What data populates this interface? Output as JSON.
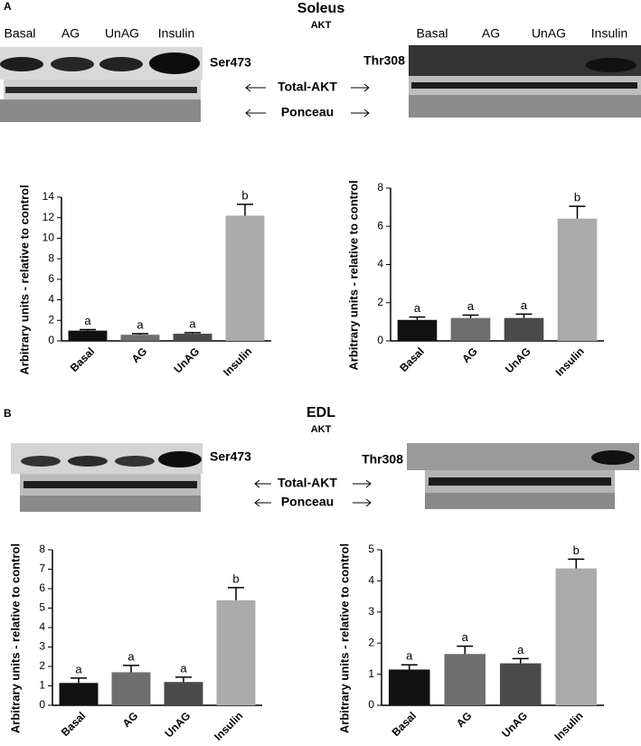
{
  "panels": [
    {
      "letter": "A",
      "title": "Soleus",
      "protein": "AKT",
      "left_lanes": [
        "Basal",
        "AG",
        "UnAG",
        "Insulin"
      ],
      "right_lanes": [
        "Basal",
        "AG",
        "UnAG",
        "Insulin"
      ],
      "left_site": "Ser473",
      "right_site": "Thr308",
      "total_label": "Total-AKT",
      "stain_label": "Ponceau"
    },
    {
      "letter": "B",
      "title": "EDL",
      "protein": "AKT",
      "left_site": "Ser473",
      "right_site": "Thr308",
      "total_label": "Total-AKT",
      "stain_label": "Ponceau"
    }
  ],
  "chart_data": [
    {
      "type": "bar",
      "y_label": "Arbitrary units - relative to control",
      "categories": [
        "Basal",
        "AG",
        "UnAG",
        "Insulin"
      ],
      "values": [
        1.0,
        0.6,
        0.7,
        12.2
      ],
      "errors": [
        0.1,
        0.1,
        0.1,
        1.1
      ],
      "annotations": [
        "a",
        "a",
        "a",
        "b"
      ],
      "colors": [
        "#111111",
        "#6e6e6e",
        "#4a4a4a",
        "#ababab"
      ],
      "ylim": [
        0,
        14
      ],
      "yticks": [
        0,
        2,
        4,
        6,
        8,
        10,
        12,
        14
      ]
    },
    {
      "type": "bar",
      "y_label": "Arbitrary units - relative to control",
      "categories": [
        "Basal",
        "AG",
        "UnAG",
        "Insulin"
      ],
      "values": [
        1.1,
        1.2,
        1.2,
        6.4
      ],
      "errors": [
        0.15,
        0.15,
        0.2,
        0.65
      ],
      "annotations": [
        "a",
        "a",
        "a",
        "b"
      ],
      "colors": [
        "#111111",
        "#6e6e6e",
        "#4a4a4a",
        "#ababab"
      ],
      "ylim": [
        0,
        8
      ],
      "yticks": [
        0,
        2,
        4,
        6,
        8
      ]
    },
    {
      "type": "bar",
      "y_label": "Arbitrary units - relative to control",
      "categories": [
        "Basal",
        "AG",
        "UnAG",
        "Insulin"
      ],
      "values": [
        1.15,
        1.7,
        1.2,
        5.4
      ],
      "errors": [
        0.25,
        0.35,
        0.25,
        0.65
      ],
      "annotations": [
        "a",
        "a",
        "a",
        "b"
      ],
      "colors": [
        "#111111",
        "#6e6e6e",
        "#4a4a4a",
        "#ababab"
      ],
      "ylim": [
        0,
        8
      ],
      "yticks": [
        0,
        1,
        2,
        3,
        4,
        5,
        6,
        7,
        8
      ]
    },
    {
      "type": "bar",
      "y_label": "Arbitrary units - relative to control",
      "categories": [
        "Basal",
        "AG",
        "UnAG",
        "Insulin"
      ],
      "values": [
        1.15,
        1.65,
        1.35,
        4.4
      ],
      "errors": [
        0.15,
        0.25,
        0.15,
        0.3
      ],
      "annotations": [
        "a",
        "a",
        "a",
        "b"
      ],
      "colors": [
        "#111111",
        "#6e6e6e",
        "#4a4a4a",
        "#ababab"
      ],
      "ylim": [
        0,
        5
      ],
      "yticks": [
        0,
        1,
        2,
        3,
        4,
        5
      ]
    }
  ]
}
